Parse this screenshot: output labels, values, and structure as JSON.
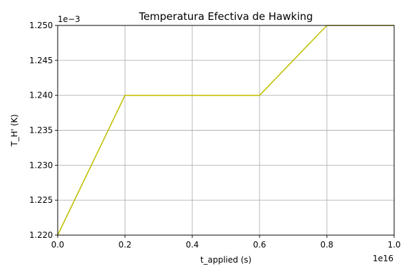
{
  "chart_data": {
    "type": "line",
    "title": "Temperatura Efectiva de Hawking",
    "xlabel": "t_applied (s)",
    "ylabel": "T_H' (K)",
    "x_scale_label": "1e16",
    "y_scale_label": "1e−3",
    "xlim": [
      0.0,
      1.0
    ],
    "ylim": [
      1.22,
      1.25
    ],
    "x_ticks": [
      0.0,
      0.2,
      0.4,
      0.6,
      0.8,
      1.0
    ],
    "x_tick_labels": [
      "0.0",
      "0.2",
      "0.4",
      "0.6",
      "0.8",
      "1.0"
    ],
    "y_ticks": [
      1.22,
      1.225,
      1.23,
      1.235,
      1.24,
      1.245,
      1.25
    ],
    "y_tick_labels": [
      "1.220",
      "1.225",
      "1.230",
      "1.235",
      "1.240",
      "1.245",
      "1.250"
    ],
    "grid": true,
    "series": [
      {
        "color": "#bfbf00",
        "x": [
          0.0,
          0.2,
          0.4,
          0.6,
          0.8,
          1.0
        ],
        "y": [
          1.22,
          1.24,
          1.24,
          1.24,
          1.25,
          1.25
        ]
      }
    ]
  }
}
